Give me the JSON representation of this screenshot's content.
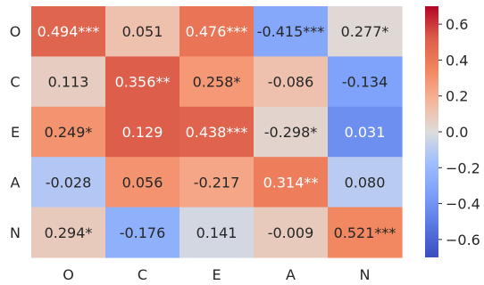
{
  "chart_data": {
    "type": "heatmap",
    "title": "",
    "xlabel": "",
    "ylabel": "",
    "x_categories": [
      "O",
      "C",
      "E",
      "A",
      "N"
    ],
    "y_categories": [
      "O",
      "C",
      "E",
      "A",
      "N"
    ],
    "colormap": "coolwarm",
    "vmin": -0.7,
    "vmax": 0.7,
    "grid": false,
    "colorbar": {
      "placement": "right",
      "ticks": [
        0.6,
        0.4,
        0.2,
        0.0,
        -0.2,
        -0.4,
        -0.6
      ],
      "tick_labels": [
        "0.6",
        "0.4",
        "0.2",
        "0.0",
        "−0.2",
        "−0.4",
        "−0.6"
      ]
    },
    "cells": [
      [
        {
          "value": 0.494,
          "label": "0.494***",
          "color_value": 0.49
        },
        {
          "value": 0.051,
          "label": "0.051",
          "color_value": 0.12
        },
        {
          "value": 0.476,
          "label": "0.476***",
          "color_value": 0.42
        },
        {
          "value": -0.415,
          "label": "-0.415***",
          "color_value": -0.3
        },
        {
          "value": 0.277,
          "label": "0.277*",
          "color_value": 0.02
        }
      ],
      [
        {
          "value": 0.113,
          "label": "0.113",
          "color_value": 0.07
        },
        {
          "value": 0.356,
          "label": "0.356**",
          "color_value": 0.52
        },
        {
          "value": 0.258,
          "label": "0.258*",
          "color_value": 0.28
        },
        {
          "value": -0.086,
          "label": "-0.086",
          "color_value": 0.12
        },
        {
          "value": -0.134,
          "label": "-0.134",
          "color_value": -0.33
        }
      ],
      [
        {
          "value": 0.249,
          "label": "0.249*",
          "color_value": 0.3
        },
        {
          "value": 0.129,
          "label": "0.129",
          "color_value": 0.52
        },
        {
          "value": 0.438,
          "label": "0.438***",
          "color_value": 0.5
        },
        {
          "value": -0.298,
          "label": "-0.298*",
          "color_value": 0.04
        },
        {
          "value": 0.031,
          "label": "0.031",
          "color_value": -0.42
        }
      ],
      [
        {
          "value": -0.028,
          "label": "-0.028",
          "color_value": -0.12
        },
        {
          "value": 0.056,
          "label": "0.056",
          "color_value": 0.3
        },
        {
          "value": -0.217,
          "label": "-0.217",
          "color_value": 0.23
        },
        {
          "value": 0.314,
          "label": "0.314**",
          "color_value": 0.38
        },
        {
          "value": 0.08,
          "label": "0.080",
          "color_value": -0.1
        }
      ],
      [
        {
          "value": 0.294,
          "label": "0.294*",
          "color_value": 0.08
        },
        {
          "value": -0.176,
          "label": "-0.176",
          "color_value": -0.25
        },
        {
          "value": 0.141,
          "label": "0.141",
          "color_value": -0.03
        },
        {
          "value": -0.009,
          "label": "-0.009",
          "color_value": 0.08
        },
        {
          "value": 0.521,
          "label": "0.521***",
          "color_value": 0.34
        }
      ]
    ]
  }
}
